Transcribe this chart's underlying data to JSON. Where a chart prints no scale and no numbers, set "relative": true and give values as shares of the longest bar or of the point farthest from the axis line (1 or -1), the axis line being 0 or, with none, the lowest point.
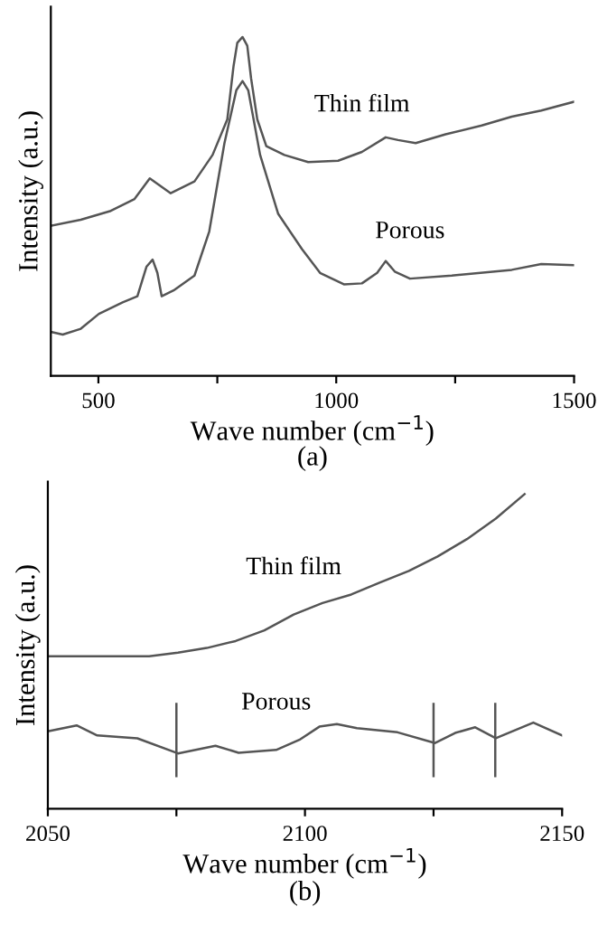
{
  "chart_data": [
    {
      "type": "line",
      "relative": true,
      "xlabel": "Wave number (cm$^{−1}$)",
      "ylabel": "Intensity (a.u.)",
      "xlim": [
        400,
        1500
      ],
      "xticks": [
        {
          "value": 500,
          "label": "500"
        },
        {
          "value": 750,
          "label": null
        },
        {
          "value": 1000,
          "label": "1000"
        },
        {
          "value": 1250,
          "label": null
        },
        {
          "value": 1500,
          "label": "1500"
        }
      ],
      "tick_labels": "x",
      "grid": false,
      "legend": false,
      "marker": "none",
      "line_style": "solid",
      "annotations": [
        "(a)"
      ],
      "series": [
        {
          "name": "Thin film",
          "color": "#555555",
          "x": [
            400,
            463,
            526,
            576,
            608,
            626,
            652,
            702,
            740,
            771,
            784,
            792,
            803,
            813,
            821,
            834,
            853,
            891,
            941,
            1004,
            1054,
            1104,
            1130,
            1167,
            1230,
            1306,
            1369,
            1431,
            1500
          ],
          "values": [
            0.443,
            0.461,
            0.487,
            0.522,
            0.583,
            0.565,
            0.539,
            0.574,
            0.652,
            0.757,
            0.913,
            0.983,
            1.0,
            0.974,
            0.878,
            0.757,
            0.678,
            0.652,
            0.631,
            0.635,
            0.661,
            0.704,
            0.696,
            0.687,
            0.713,
            0.739,
            0.765,
            0.783,
            0.809
          ]
        },
        {
          "name": "Porous",
          "color": "#555555",
          "x": [
            400,
            425,
            463,
            501,
            551,
            582,
            601,
            614,
            624,
            633,
            658,
            702,
            733,
            765,
            790,
            803,
            815,
            840,
            878,
            928,
            966,
            1016,
            1054,
            1086,
            1104,
            1123,
            1155,
            1243,
            1369,
            1431,
            1500
          ],
          "values": [
            0.13,
            0.122,
            0.139,
            0.183,
            0.217,
            0.235,
            0.322,
            0.343,
            0.304,
            0.235,
            0.252,
            0.296,
            0.426,
            0.687,
            0.843,
            0.87,
            0.843,
            0.652,
            0.478,
            0.374,
            0.304,
            0.27,
            0.273,
            0.304,
            0.339,
            0.308,
            0.287,
            0.296,
            0.313,
            0.33,
            0.327
          ]
        }
      ]
    },
    {
      "type": "line",
      "relative": true,
      "xlabel": "Wave number (cm$^{−1}$)",
      "ylabel": "Intensity (a.u.)",
      "xlim": [
        2050,
        2150
      ],
      "xticks": [
        {
          "value": 2050,
          "label": "2050"
        },
        {
          "value": 2075,
          "label": null
        },
        {
          "value": 2100,
          "label": "2100"
        },
        {
          "value": 2125,
          "label": null
        },
        {
          "value": 2150,
          "label": "2150"
        }
      ],
      "tick_labels": "x",
      "grid": false,
      "legend": false,
      "marker": "none",
      "line_style": "solid",
      "annotations": [
        "(b)"
      ],
      "ref_lines": [
        {
          "axis": "x",
          "value": 2075,
          "color": "#555555"
        },
        {
          "axis": "x",
          "value": 2125,
          "color": "#555555"
        },
        {
          "axis": "x",
          "value": 2137,
          "color": "#555555"
        }
      ],
      "series": [
        {
          "name": "Thin film",
          "color": "#555555",
          "x": [
            2050,
            2069.7,
            2075.3,
            2080.9,
            2086.5,
            2092.1,
            2097.8,
            2103.4,
            2109,
            2114.6,
            2120.2,
            2125.8,
            2131.5,
            2137.1,
            2142.7
          ],
          "values": [
            0.485,
            0.485,
            0.496,
            0.511,
            0.533,
            0.567,
            0.617,
            0.654,
            0.681,
            0.719,
            0.756,
            0.802,
            0.857,
            0.922,
            1.0
          ]
        },
        {
          "name": "Porous",
          "color": "#555555",
          "x": [
            2050,
            2055.6,
            2059.6,
            2067.4,
            2075.3,
            2082.6,
            2087.1,
            2094.4,
            2098.9,
            2102.8,
            2106.2,
            2110.1,
            2118,
            2125.3,
            2129.2,
            2133.1,
            2137.1,
            2144.4,
            2150
          ],
          "values": [
            0.246,
            0.265,
            0.233,
            0.224,
            0.176,
            0.2,
            0.178,
            0.187,
            0.219,
            0.261,
            0.269,
            0.256,
            0.243,
            0.209,
            0.241,
            0.259,
            0.224,
            0.274,
            0.233
          ]
        }
      ]
    }
  ]
}
